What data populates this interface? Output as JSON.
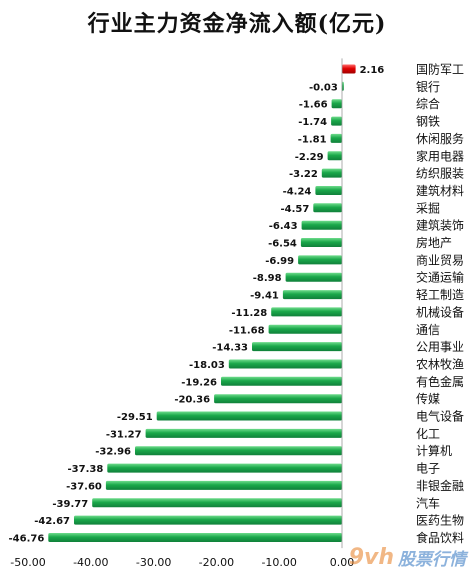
{
  "chart_data": {
    "type": "bar",
    "orientation": "horizontal",
    "title": "行业主力资金净流入额(亿元)",
    "categories": [
      "国防军工",
      "银行",
      "综合",
      "钢铁",
      "休闲服务",
      "家用电器",
      "纺织服装",
      "建筑材料",
      "采掘",
      "建筑装饰",
      "房地产",
      "商业贸易",
      "交通运输",
      "轻工制造",
      "机械设备",
      "通信",
      "公用事业",
      "农林牧渔",
      "有色金属",
      "传媒",
      "电气设备",
      "化工",
      "计算机",
      "电子",
      "非银金融",
      "汽车",
      "医药生物",
      "食品饮料"
    ],
    "values": [
      2.16,
      -0.03,
      -1.66,
      -1.74,
      -1.81,
      -2.29,
      -3.22,
      -4.24,
      -4.57,
      -6.43,
      -6.54,
      -6.99,
      -8.98,
      -9.41,
      -11.28,
      -11.68,
      -14.33,
      -18.03,
      -19.26,
      -20.36,
      -29.51,
      -31.27,
      -32.96,
      -37.38,
      -37.6,
      -39.77,
      -42.67,
      -46.76
    ],
    "value_labels": [
      "2.16",
      "-0.03",
      "-1.66",
      "-1.74",
      "-1.81",
      "-2.29",
      "-3.22",
      "-4.24",
      "-4.57",
      "-6.43",
      "-6.54",
      "-6.99",
      "-8.98",
      "-9.41",
      "-11.28",
      "-11.68",
      "-14.33",
      "-18.03",
      "-19.26",
      "-20.36",
      "-29.51",
      "-31.27",
      "-32.96",
      "-37.38",
      "-37.60",
      "-39.77",
      "-42.67",
      "-46.76"
    ],
    "xlim": [
      -50,
      0
    ],
    "x_ticks": [
      "-50.00",
      "-40.00",
      "-30.00",
      "-20.00",
      "-10.00",
      "0.00"
    ],
    "x_tick_values": [
      -50,
      -40,
      -30,
      -20,
      -10,
      0
    ],
    "grid": false,
    "legend": "none",
    "colors": {
      "positive": "#e00000",
      "negative": "#1aa84a"
    }
  },
  "watermark": {
    "mark": "9vh",
    "text": "股票行情"
  }
}
